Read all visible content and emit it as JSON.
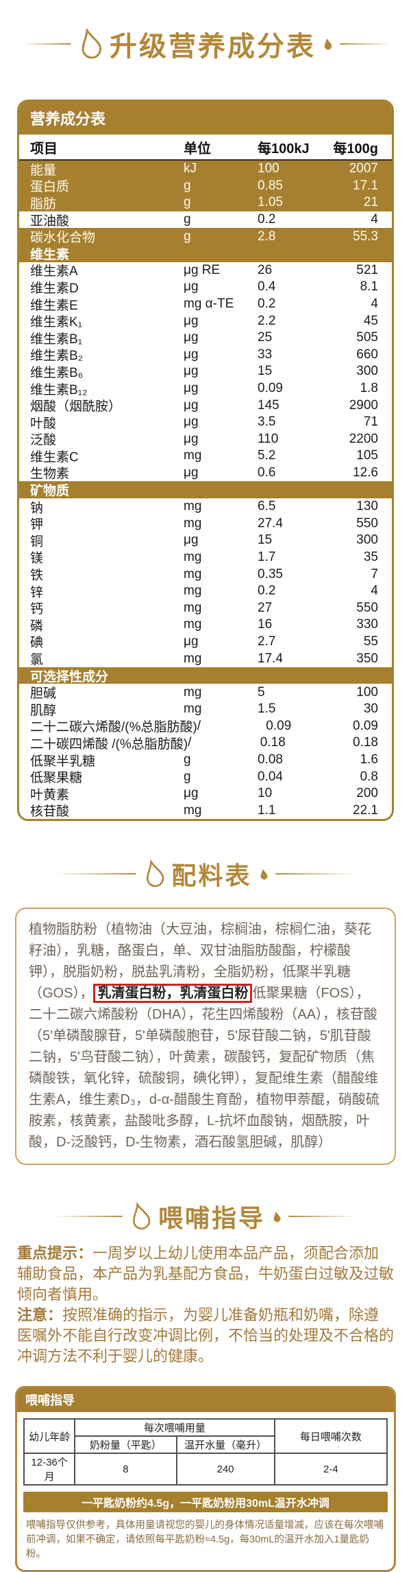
{
  "theme": {
    "gold": "#a6802f",
    "gold_bright": "#b3873b",
    "highlight_red": "#cc2422"
  },
  "headings": {
    "nutrition": "升级营养成分表",
    "ingredients": "配料表",
    "feeding": "喂哺指导"
  },
  "nutrition_table": {
    "title": "营养成分表",
    "columns": {
      "item": "项目",
      "unit": "单位",
      "per_kj": "每100kJ",
      "per_g": "每100g"
    },
    "rows": [
      {
        "gold": true,
        "name": "能量",
        "unit": "kJ",
        "kj": "100",
        "g": "2007"
      },
      {
        "gold": true,
        "name": "蛋白质",
        "unit": "g",
        "kj": "0.85",
        "g": "17.1"
      },
      {
        "gold": true,
        "name": "脂肪",
        "unit": "g",
        "kj": "1.05",
        "g": "21"
      },
      {
        "gold": false,
        "name": "亚油酸",
        "unit": "g",
        "kj": "0.2",
        "g": "4"
      },
      {
        "gold": true,
        "name": "碳水化合物",
        "unit": "g",
        "kj": "2.8",
        "g": "55.3"
      },
      {
        "section": "维生素"
      },
      {
        "gold": false,
        "name": "维生素A",
        "unit": "μg RE",
        "kj": "26",
        "g": "521"
      },
      {
        "gold": false,
        "name": "维生素D",
        "unit": "μg",
        "kj": "0.4",
        "g": "8.1"
      },
      {
        "gold": false,
        "name": "维生素E",
        "unit": "mg α-TE",
        "kj": "0.2",
        "g": "4"
      },
      {
        "gold": false,
        "name": "维生素K₁",
        "unit": "μg",
        "kj": "2.2",
        "g": "45"
      },
      {
        "gold": false,
        "name": "维生素B₁",
        "unit": "μg",
        "kj": "25",
        "g": "505"
      },
      {
        "gold": false,
        "name": "维生素B₂",
        "unit": "μg",
        "kj": "33",
        "g": "660"
      },
      {
        "gold": false,
        "name": "维生素B₆",
        "unit": "μg",
        "kj": "15",
        "g": "300"
      },
      {
        "gold": false,
        "name": "维生素B₁₂",
        "unit": "μg",
        "kj": "0.09",
        "g": "1.8"
      },
      {
        "gold": false,
        "name": "烟酸（烟酰胺）",
        "unit": "μg",
        "kj": "145",
        "g": "2900"
      },
      {
        "gold": false,
        "name": "叶酸",
        "unit": "μg",
        "kj": "3.5",
        "g": "71"
      },
      {
        "gold": false,
        "name": "泛酸",
        "unit": "μg",
        "kj": "110",
        "g": "2200"
      },
      {
        "gold": false,
        "name": "维生素C",
        "unit": "mg",
        "kj": "5.2",
        "g": "105"
      },
      {
        "gold": false,
        "name": "生物素",
        "unit": "μg",
        "kj": "0.6",
        "g": "12.6"
      },
      {
        "section": "矿物质"
      },
      {
        "gold": false,
        "name": "钠",
        "unit": "mg",
        "kj": "6.5",
        "g": "130"
      },
      {
        "gold": false,
        "name": "钾",
        "unit": "mg",
        "kj": "27.4",
        "g": "550"
      },
      {
        "gold": false,
        "name": "铜",
        "unit": "μg",
        "kj": "15",
        "g": "300"
      },
      {
        "gold": false,
        "name": "镁",
        "unit": "mg",
        "kj": "1.7",
        "g": "35"
      },
      {
        "gold": false,
        "name": "铁",
        "unit": "mg",
        "kj": "0.35",
        "g": "7"
      },
      {
        "gold": false,
        "name": "锌",
        "unit": "mg",
        "kj": "0.2",
        "g": "4"
      },
      {
        "gold": false,
        "name": "钙",
        "unit": "mg",
        "kj": "27",
        "g": "550"
      },
      {
        "gold": false,
        "name": "磷",
        "unit": "mg",
        "kj": "16",
        "g": "330"
      },
      {
        "gold": false,
        "name": "碘",
        "unit": "μg",
        "kj": "2.7",
        "g": "55"
      },
      {
        "gold": false,
        "name": "氯",
        "unit": "mg",
        "kj": "17.4",
        "g": "350"
      },
      {
        "section": "可选择性成分"
      },
      {
        "gold": false,
        "name": "胆碱",
        "unit": "mg",
        "kj": "5",
        "g": "100"
      },
      {
        "gold": false,
        "name": "肌醇",
        "unit": "mg",
        "kj": "1.5",
        "g": "30"
      },
      {
        "gold": false,
        "name": "二十二碳六烯酸/(%总脂肪酸)",
        "unit": "/",
        "kj": "0.09",
        "g": "0.09"
      },
      {
        "gold": false,
        "name": "二十碳四烯酸 /(%总脂肪酸)",
        "unit": "/",
        "kj": "0.18",
        "g": "0.18"
      },
      {
        "gold": false,
        "name": "低聚半乳糖",
        "unit": "g",
        "kj": "0.08",
        "g": "1.6"
      },
      {
        "gold": false,
        "name": "低聚果糖",
        "unit": "g",
        "kj": "0.04",
        "g": "0.8"
      },
      {
        "gold": false,
        "name": "叶黄素",
        "unit": "μg",
        "kj": "10",
        "g": "200"
      },
      {
        "gold": false,
        "name": "核苷酸",
        "unit": "mg",
        "kj": "1.1",
        "g": "22.1"
      }
    ]
  },
  "ingredients": {
    "before": "植物脂肪粉（植物油（大豆油，棕榈油，棕榈仁油，葵花籽油），乳糖，酪蛋白，单、双甘油脂肪酸酯，柠檬酸钾），脱脂奶粉，脱盐乳清粉，全脂奶粉，低聚半乳糖（GOS），",
    "highlight": "乳清蛋白粉，乳清蛋白粉",
    "after": "低聚果糖（FOS），二十二碳六烯酸粉（DHA），花生四烯酸粉（AA），核苷酸（5'单磷酸腺苷，5'单磷酸胞苷，5'尿苷酸二钠，5'肌苷酸二钠，5'鸟苷酸二钠），叶黄素，碳酸钙，复配矿物质（焦磷酸铁，氧化锌，硫酸铜，碘化钾），复配维生素（醋酸维生素A，维生素D₃，d-α-醋酸生育酚，植物甲萘醌，硝酸硫胺素，核黄素，盐酸吡多醇，L-抗坏血酸钠，烟酰胺，叶酸，D-泛酸钙，D-生物素，酒石酸氢胆碱，肌醇）"
  },
  "tips": {
    "tip1_label": "重点提示：",
    "tip1_text": "一周岁以上幼儿使用本品产品，须配合添加辅助食品，本产品为乳基配方食品，牛奶蛋白过敏及过敏倾向者慎用。",
    "tip2_label": "注意：",
    "tip2_text": "按照准确的指示，为婴儿准备奶瓶和奶嘴，除遵医嘱外不能自行改变冲调比例，不恰当的处理及不合格的冲调方法不利于婴儿的健康。"
  },
  "feeding_box": {
    "header": "喂哺指导",
    "table": {
      "col_age": "幼儿年龄",
      "col_amount": "每次喂哺用量",
      "col_powder": "奶粉量（平匙）",
      "col_water": "温开水量（毫升）",
      "col_times": "每日喂哺次数",
      "row_age": "12-36个月",
      "row_powder": "8",
      "row_water": "240",
      "row_times": "2-4"
    },
    "note_bar": "一平匙奶粉约4.5g，一平匙奶粉用30mL温开水冲调",
    "note": "喂哺指导仅供参考，具体用量请视您的婴儿的身体情况适量增减，应该在每次喂哺前冲调，如果不确定，请依照每平匙奶粉≈4.5g，每30mL的温开水加入1量匙奶粉。"
  }
}
